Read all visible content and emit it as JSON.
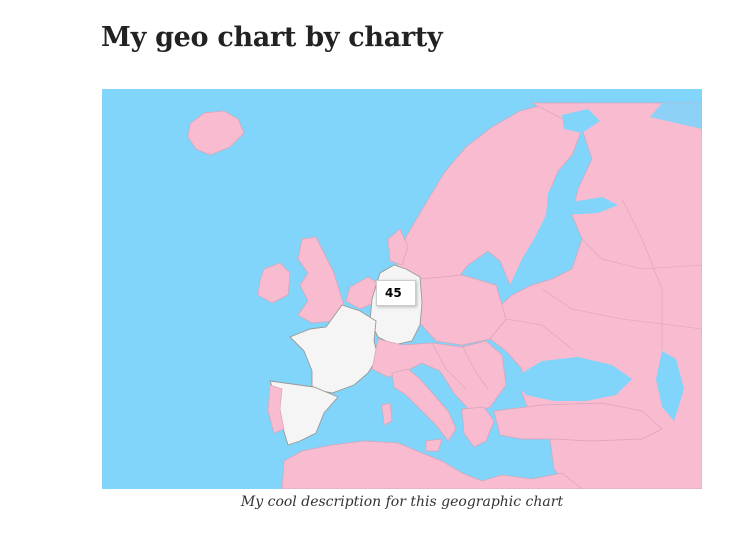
{
  "page": {
    "title": "My geo chart by charty",
    "caption": "My cool description for this geographic chart"
  },
  "map": {
    "region": "Europe",
    "colors": {
      "water": "#81d4fa",
      "land": "#f8bbd0",
      "highlighted": "#f5f5f5",
      "border": "#c8a4b0"
    },
    "highlighted_countries": [
      "Germany",
      "France",
      "Spain"
    ],
    "tooltip": {
      "country": "Germany",
      "value": "45"
    }
  },
  "chart_data": {
    "type": "geo",
    "region": "Europe",
    "data": [
      {
        "country": "Germany",
        "value": 45
      }
    ]
  }
}
